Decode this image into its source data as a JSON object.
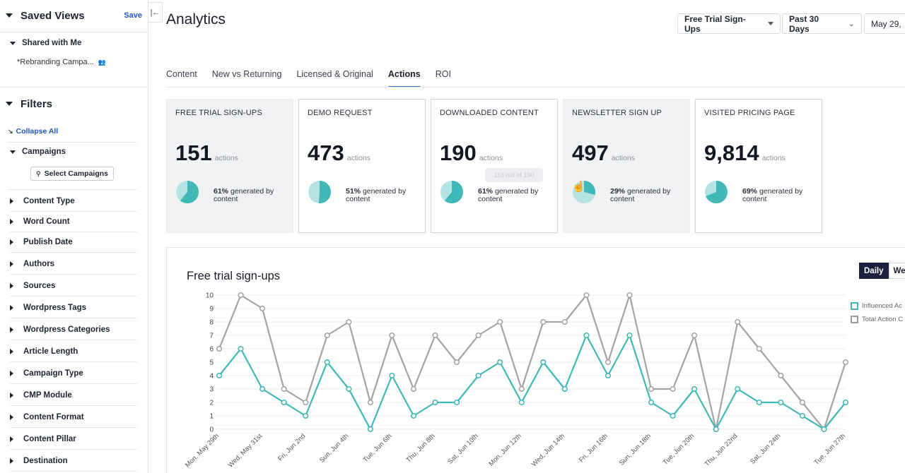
{
  "sidebar": {
    "saved_views_title": "Saved Views",
    "save_label": "Save",
    "shared_with_me_label": "Shared with Me",
    "saved_view_item": "*Rebranding Campa...",
    "filters_title": "Filters",
    "collapse_all_label": "Collapse All",
    "campaigns_label": "Campaigns",
    "select_campaigns_label": "Select Campaigns",
    "filters": [
      "Content Type",
      "Word Count",
      "Publish Date",
      "Authors",
      "Sources",
      "Wordpress Tags",
      "Wordpress Categories",
      "Article Length",
      "Campaign Type",
      "CMP Module",
      "Content Format",
      "Content Pillar",
      "Destination"
    ]
  },
  "header": {
    "title": "Analytics",
    "action_select": "Free Trial Sign-Ups",
    "range_select": "Past 30 Days",
    "date_select": "May 29,"
  },
  "tabs": [
    {
      "label": "Content",
      "active": false
    },
    {
      "label": "New vs Returning",
      "active": false
    },
    {
      "label": "Licensed & Original",
      "active": false
    },
    {
      "label": "Actions",
      "active": true
    },
    {
      "label": "ROI",
      "active": false
    }
  ],
  "cards": [
    {
      "title": "FREE TRIAL SIGN-UPS",
      "value": "151",
      "unit": "actions",
      "percent": 61,
      "percent_label": "61%",
      "desc": "generated by content",
      "muted": true
    },
    {
      "title": "DEMO REQUEST",
      "value": "473",
      "unit": "actions",
      "percent": 51,
      "percent_label": "51%",
      "desc": "generated by content",
      "muted": false
    },
    {
      "title": "DOWNLOADED CONTENT",
      "value": "190",
      "unit": "actions",
      "percent": 61,
      "percent_label": "61%",
      "desc": "generated by content",
      "muted": false
    },
    {
      "title": "NEWSLETTER SIGN UP",
      "value": "497",
      "unit": "actions",
      "percent": 29,
      "percent_label": "29%",
      "desc": "generated by content",
      "muted": true
    },
    {
      "title": "VISITED PRICING PAGE",
      "value": "9,814",
      "unit": "actions",
      "percent": 69,
      "percent_label": "69%",
      "desc": "generated by content",
      "muted": false
    }
  ],
  "tooltip_text": "116 out of 190",
  "colors": {
    "teal": "#3fb8b7",
    "teal_light": "#b5e3e3",
    "gray_line": "#a3a3a3",
    "accent": "#3b6fd6",
    "dark": "#1d2140"
  },
  "chart_granularity": {
    "active": "Daily",
    "next": "We"
  },
  "chart_data": {
    "type": "line",
    "title": "Free trial sign-ups",
    "ylim": [
      0,
      10
    ],
    "yticks": [
      "0",
      "1",
      "2",
      "3",
      "4",
      "5",
      "6",
      "7",
      "8",
      "9",
      "10"
    ],
    "x": [
      "May 29",
      "May 30",
      "May 31",
      "Jun 1",
      "Jun 2",
      "Jun 3",
      "Jun 4",
      "Jun 5",
      "Jun 6",
      "Jun 7",
      "Jun 8",
      "Jun 9",
      "Jun 10",
      "Jun 11",
      "Jun 12",
      "Jun 13",
      "Jun 14",
      "Jun 15",
      "Jun 16",
      "Jun 17",
      "Jun 18",
      "Jun 19",
      "Jun 20",
      "Jun 21",
      "Jun 22",
      "Jun 23",
      "Jun 24",
      "Jun 25",
      "Jun 26",
      "Jun 27"
    ],
    "xtick_labels": [
      "Mon, May 29th",
      "Wed, May 31st",
      "Fri, Jun 2nd",
      "Sun, Jun 4th",
      "Tue, Jun 6th",
      "Thu, Jun 8th",
      "Sat, Jun 10th",
      "Mon, Jun 12th",
      "Wed, Jun 14th",
      "Fri, Jun 16th",
      "Sun, Jun 18th",
      "Tue, Jun 20th",
      "Thu, Jun 22nd",
      "Sat, Jun 24th",
      "Tue, Jun 27th"
    ],
    "series": [
      {
        "name": "Influenced Ac",
        "color": "#3fb8b7",
        "values": [
          4,
          6,
          3,
          2,
          1,
          5,
          3,
          0,
          4,
          1,
          2,
          2,
          4,
          5,
          2,
          5,
          3,
          7,
          4,
          7,
          2,
          1,
          3,
          0,
          3,
          2,
          2,
          1,
          0,
          2
        ]
      },
      {
        "name": "Total Action C",
        "color": "#a3a3a3",
        "values": [
          6,
          10,
          9,
          3,
          2,
          7,
          8,
          2,
          7,
          3,
          7,
          5,
          7,
          8,
          3,
          8,
          8,
          10,
          5,
          10,
          3,
          3,
          7,
          0,
          8,
          6,
          4,
          2,
          0,
          5
        ]
      }
    ],
    "grid": true,
    "legend": "right"
  }
}
